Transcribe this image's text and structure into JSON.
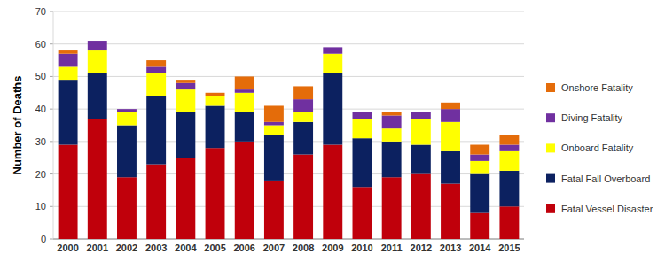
{
  "chart_data": {
    "type": "bar",
    "stacked": true,
    "y_label": "Number of Deaths",
    "categories": [
      "2000",
      "2001",
      "2002",
      "2003",
      "2004",
      "2005",
      "2006",
      "2007",
      "2008",
      "2009",
      "2010",
      "2011",
      "2012",
      "2013",
      "2014",
      "2015"
    ],
    "series": [
      {
        "name": "Fatal Vessel Disaster",
        "color": "#c0000b",
        "values": [
          29,
          37,
          19,
          23,
          25,
          28,
          30,
          18,
          26,
          29,
          16,
          19,
          20,
          17,
          8,
          10
        ]
      },
      {
        "name": "Fatal Fall Overboard",
        "color": "#0c2160",
        "values": [
          20,
          14,
          16,
          21,
          14,
          13,
          9,
          14,
          10,
          22,
          15,
          11,
          9,
          10,
          12,
          11
        ]
      },
      {
        "name": "Onboard Fatality",
        "color": "#ffff00",
        "values": [
          4,
          7,
          4,
          7,
          7,
          3,
          6,
          3,
          3,
          6,
          6,
          4,
          8,
          9,
          4,
          6
        ]
      },
      {
        "name": "Diving Fatality",
        "color": "#7030a0",
        "values": [
          4,
          3,
          1,
          2,
          2,
          0,
          1,
          1,
          4,
          2,
          2,
          4,
          2,
          4,
          2,
          2
        ]
      },
      {
        "name": "Onshore Fatality",
        "color": "#e46c0a",
        "values": [
          1,
          0,
          0,
          2,
          1,
          1,
          4,
          5,
          4,
          0,
          0,
          1,
          0,
          2,
          3,
          3
        ]
      }
    ],
    "ylim": [
      0,
      70
    ],
    "yticks": [
      0,
      10,
      20,
      30,
      40,
      50,
      60,
      70
    ],
    "grid": true,
    "legend": "right"
  }
}
